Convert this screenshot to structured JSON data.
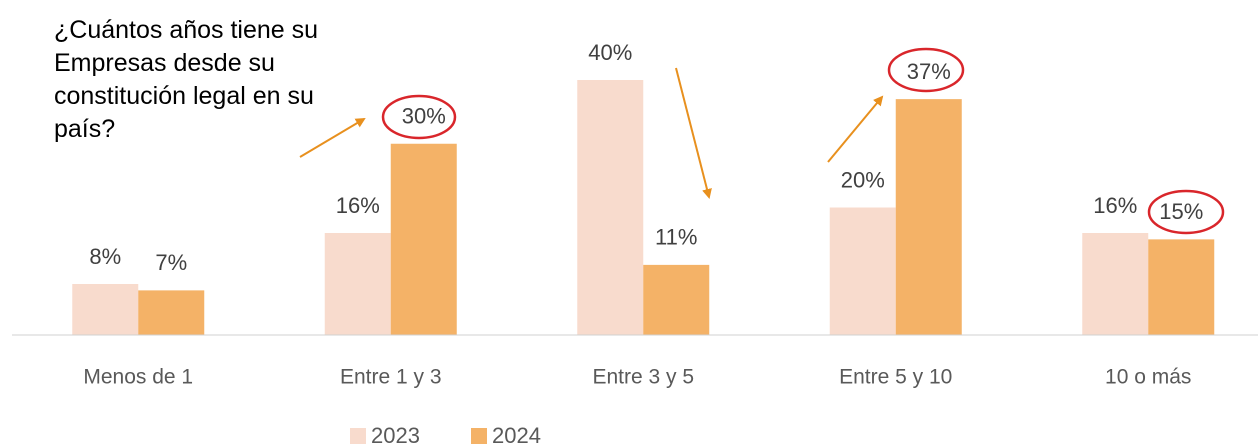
{
  "chart_data": {
    "type": "bar",
    "title": "¿Cuántos años tiene su Empresas desde su constitución legal en su país?",
    "categories": [
      "Menos de 1",
      "Entre 1 y 3",
      "Entre 3 y 5",
      "Entre 5 y 10",
      "10 o más"
    ],
    "series": [
      {
        "name": "2023",
        "color": "#f8dbcd",
        "values": [
          8,
          16,
          40,
          20,
          16
        ],
        "value_labels": [
          "8%",
          "16%",
          "40%",
          "20%",
          "16%"
        ]
      },
      {
        "name": "2024",
        "color": "#f4b267",
        "values": [
          7,
          30,
          11,
          37,
          15
        ],
        "value_labels": [
          "7%",
          "30%",
          "11%",
          "37%",
          "15%"
        ]
      }
    ],
    "ylim": [
      0,
      40
    ],
    "grid": false
  }
}
